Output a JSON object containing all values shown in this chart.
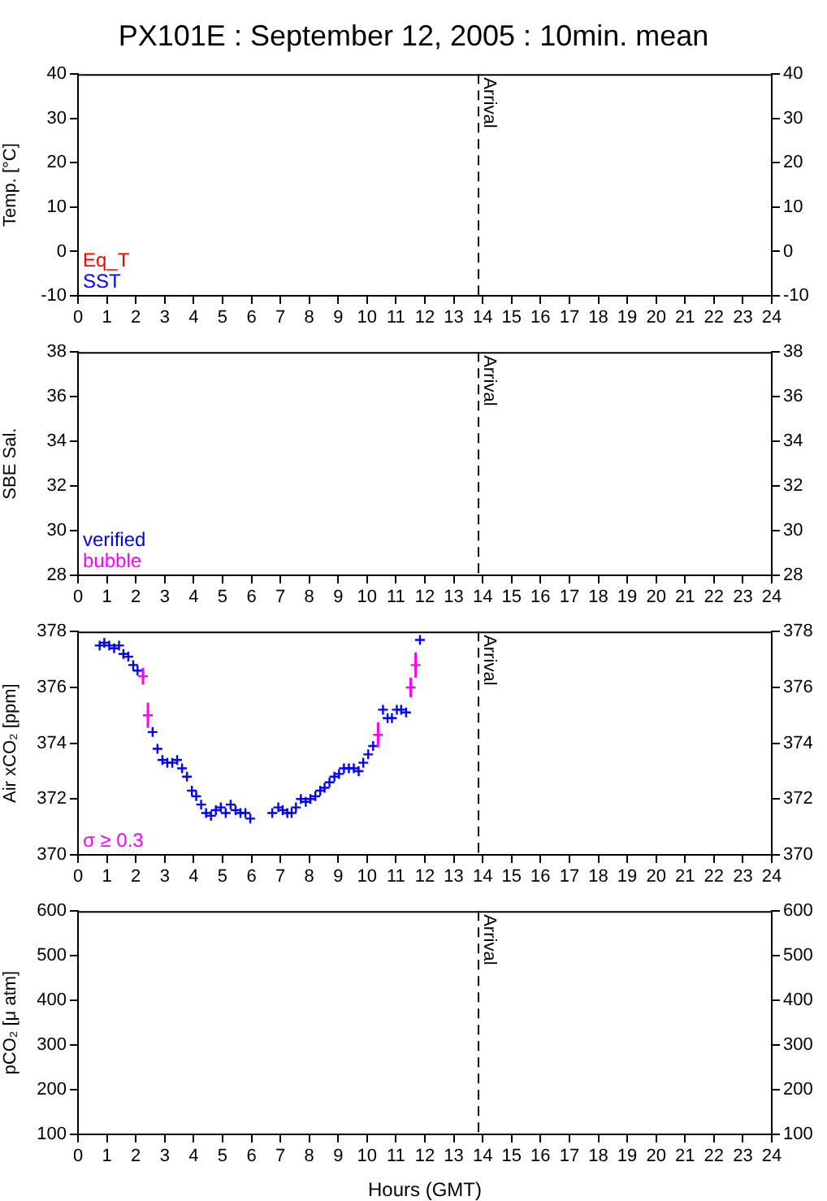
{
  "chart_data": [
    {
      "type": "scatter",
      "title": "PX101E : September 12, 2005 : 10min. mean",
      "ylabel": "Temp. [°C]",
      "xlim": [
        0,
        24
      ],
      "xticks": [
        0,
        1,
        2,
        3,
        4,
        5,
        6,
        7,
        8,
        9,
        10,
        11,
        12,
        13,
        14,
        15,
        16,
        17,
        18,
        19,
        20,
        21,
        22,
        23,
        24
      ],
      "ylim": [
        -10,
        40
      ],
      "yticks": [
        -10,
        0,
        10,
        20,
        30,
        40
      ],
      "y2lim": [
        -10,
        40
      ],
      "y2ticks": [
        -10,
        0,
        10,
        20,
        30,
        40
      ],
      "marker": "cross",
      "grid": false,
      "annotations": [
        "Eq_T",
        "SST"
      ],
      "ref_lines": [
        {
          "axis": "x",
          "value": 13.85,
          "label": "Arrival",
          "line_style": "dashed"
        }
      ]
    },
    {
      "type": "scatter",
      "ylabel": "SBE Sal.",
      "xlim": [
        0,
        24
      ],
      "xticks": [
        0,
        1,
        2,
        3,
        4,
        5,
        6,
        7,
        8,
        9,
        10,
        11,
        12,
        13,
        14,
        15,
        16,
        17,
        18,
        19,
        20,
        21,
        22,
        23,
        24
      ],
      "ylim": [
        28,
        38
      ],
      "yticks": [
        28,
        30,
        32,
        34,
        36,
        38
      ],
      "y2lim": [
        28,
        38
      ],
      "y2ticks": [
        28,
        30,
        32,
        34,
        36,
        38
      ],
      "marker": "cross",
      "grid": false,
      "annotations": [
        "verified",
        "bubble"
      ],
      "ref_lines": [
        {
          "axis": "x",
          "value": 13.85,
          "label": "Arrival",
          "line_style": "dashed"
        }
      ]
    },
    {
      "type": "scatter",
      "ylabel": "Air xCO₂ [ppm]",
      "xlim": [
        0,
        24
      ],
      "xticks": [
        0,
        1,
        2,
        3,
        4,
        5,
        6,
        7,
        8,
        9,
        10,
        11,
        12,
        13,
        14,
        15,
        16,
        17,
        18,
        19,
        20,
        21,
        22,
        23,
        24
      ],
      "ylim": [
        370,
        378
      ],
      "yticks": [
        370,
        372,
        374,
        376,
        378
      ],
      "y2lim": [
        370,
        378
      ],
      "y2ticks": [
        370,
        372,
        374,
        376,
        378
      ],
      "marker": "cross",
      "grid": false,
      "series": [
        {
          "color": "#0000ff",
          "x": [
            0.75,
            0.91,
            1.08,
            1.25,
            1.42,
            1.57,
            1.74,
            1.91,
            2.06,
            2.58,
            2.75,
            2.92,
            3.09,
            3.26,
            3.43,
            3.6,
            3.77,
            3.94,
            4.09,
            4.26,
            4.43,
            4.6,
            4.77,
            4.94,
            5.11,
            5.28,
            5.45,
            5.62,
            5.79,
            5.96,
            6.72,
            6.93,
            7.08,
            7.24,
            7.39,
            7.54,
            7.71,
            7.88,
            8.04,
            8.21,
            8.38,
            8.53,
            8.7,
            8.87,
            9.03,
            9.2,
            9.37,
            9.54,
            9.71,
            9.87,
            10.04,
            10.21,
            10.55,
            10.71,
            10.86,
            11.03,
            11.18,
            11.35,
            11.83
          ],
          "values": [
            377.5,
            377.6,
            377.5,
            377.4,
            377.5,
            377.2,
            377.1,
            376.8,
            376.6,
            374.4,
            373.8,
            373.4,
            373.3,
            373.3,
            373.4,
            373.1,
            372.8,
            372.3,
            372.1,
            371.8,
            371.5,
            371.4,
            371.6,
            371.7,
            371.5,
            371.8,
            371.6,
            371.5,
            371.5,
            371.3,
            371.5,
            371.7,
            371.6,
            371.5,
            371.5,
            371.7,
            372.0,
            371.9,
            372.0,
            372.1,
            372.3,
            372.4,
            372.6,
            372.8,
            372.9,
            373.1,
            373.1,
            373.1,
            373.0,
            373.3,
            373.6,
            373.9,
            375.2,
            374.9,
            374.9,
            375.2,
            375.2,
            375.1,
            377.7
          ]
        },
        {
          "name": "σ ≥ 0.3",
          "color": "#ff00ff",
          "x": [
            2.25,
            2.42,
            10.38,
            11.51,
            11.68
          ],
          "values": [
            376.4,
            375.0,
            374.3,
            376.0,
            376.8
          ],
          "errors": [
            0.3,
            0.45,
            0.45,
            0.35,
            0.45
          ]
        }
      ],
      "ref_lines": [
        {
          "axis": "x",
          "value": 13.85,
          "label": "Arrival",
          "line_style": "dashed"
        }
      ]
    },
    {
      "type": "scatter",
      "ylabel": "pCO₂ [μ atm]",
      "xlabel": "Hours (GMT)",
      "xlim": [
        0,
        24
      ],
      "xticks": [
        0,
        1,
        2,
        3,
        4,
        5,
        6,
        7,
        8,
        9,
        10,
        11,
        12,
        13,
        14,
        15,
        16,
        17,
        18,
        19,
        20,
        21,
        22,
        23,
        24
      ],
      "ylim": [
        100,
        600
      ],
      "yticks": [
        100,
        200,
        300,
        400,
        500,
        600
      ],
      "y2lim": [
        100,
        600
      ],
      "y2ticks": [
        100,
        200,
        300,
        400,
        500,
        600
      ],
      "marker": "cross",
      "grid": false,
      "ref_lines": [
        {
          "axis": "x",
          "value": 13.85,
          "label": "Arrival",
          "line_style": "dashed"
        }
      ]
    }
  ]
}
